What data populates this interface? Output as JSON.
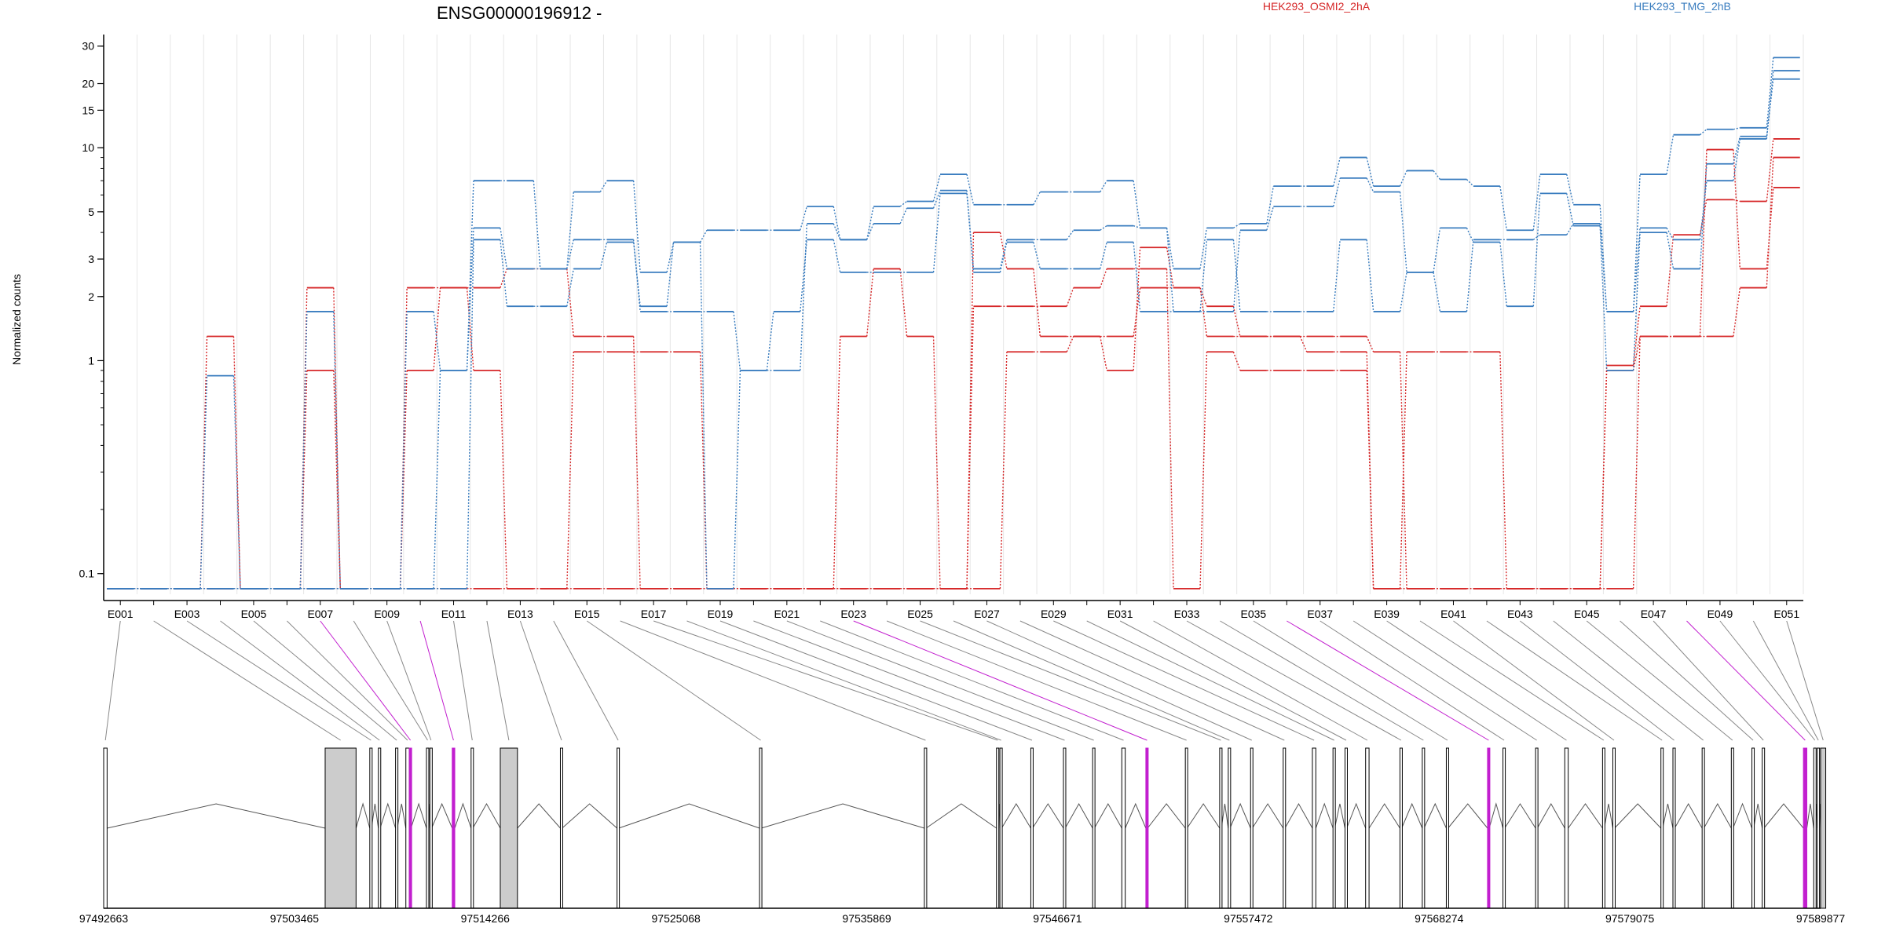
{
  "chart_data": {
    "type": "line",
    "title": "ENSG00000196912 -",
    "ylabel": "Normalized counts",
    "yscale": "log",
    "ylim": [
      0.08,
      34
    ],
    "yticks": [
      0.1,
      1,
      2,
      3,
      5,
      10,
      15,
      20,
      30
    ],
    "ytick_labels": [
      "0.1",
      "1",
      "2",
      "3",
      "5",
      "10",
      "15",
      "20",
      "30"
    ],
    "categories": [
      "E001",
      "E002",
      "E003",
      "E004",
      "E005",
      "E006",
      "E007",
      "E008",
      "E009",
      "E010",
      "E011",
      "E012",
      "E013",
      "E014",
      "E015",
      "E016",
      "E017",
      "E018",
      "E019",
      "E020",
      "E021",
      "E022",
      "E023",
      "E024",
      "E025",
      "E026",
      "E027",
      "E028",
      "E029",
      "E030",
      "E031",
      "E032",
      "E033",
      "E034",
      "E035",
      "E036",
      "E037",
      "E038",
      "E039",
      "E040",
      "E041",
      "E042",
      "E043",
      "E044",
      "E045",
      "E046",
      "E047",
      "E048",
      "E049",
      "E050",
      "E051"
    ],
    "xtick_labels": [
      "E001",
      "E003",
      "E005",
      "E007",
      "E009",
      "E011",
      "E013",
      "E015",
      "E017",
      "E019",
      "E021",
      "E023",
      "E025",
      "E027",
      "E029",
      "E031",
      "E033",
      "E035",
      "E037",
      "E039",
      "E041",
      "E043",
      "E045",
      "E047",
      "E049",
      "E051"
    ],
    "legend": [
      {
        "name": "HEK293_OSMI2_2hA",
        "color": "#d62728"
      },
      {
        "name": "HEK293_TMG_2hB",
        "color": "#3a7dbf"
      }
    ],
    "series": [
      {
        "group": "HEK293_OSMI2_2hA",
        "color": "#d62728",
        "values": [
          0.085,
          0.085,
          0.085,
          1.3,
          0.085,
          0.085,
          2.2,
          0.085,
          0.085,
          0.9,
          2.2,
          2.2,
          2.7,
          2.7,
          1.3,
          1.3,
          0.085,
          0.085,
          0.085,
          0.085,
          0.085,
          0.085,
          0.085,
          0.085,
          0.085,
          0.085,
          4.0,
          2.7,
          1.3,
          1.3,
          0.9,
          3.4,
          2.2,
          1.8,
          1.3,
          1.3,
          1.3,
          1.3,
          1.1,
          0.085,
          0.085,
          0.085,
          0.085,
          0.085,
          0.085,
          0.95,
          1.8,
          3.9,
          5.7,
          5.6,
          11.0
        ]
      },
      {
        "group": "HEK293_OSMI2_2hA",
        "color": "#d62728",
        "values": [
          0.085,
          0.085,
          0.085,
          0.085,
          0.085,
          0.085,
          0.9,
          0.085,
          0.085,
          2.2,
          2.2,
          0.9,
          0.085,
          0.085,
          1.1,
          1.1,
          1.1,
          1.1,
          0.085,
          0.085,
          0.085,
          0.085,
          1.3,
          2.7,
          1.3,
          0.085,
          1.8,
          1.8,
          1.8,
          2.2,
          2.7,
          2.7,
          0.085,
          1.1,
          0.9,
          0.9,
          0.9,
          0.9,
          0.085,
          1.1,
          1.1,
          1.1,
          0.085,
          0.085,
          0.085,
          0.9,
          1.3,
          1.3,
          1.3,
          2.2,
          9.0
        ]
      },
      {
        "group": "HEK293_OSMI2_2hA",
        "color": "#d62728",
        "values": [
          0.085,
          0.085,
          0.085,
          0.085,
          0.085,
          0.085,
          0.085,
          0.085,
          0.085,
          0.085,
          0.085,
          0.085,
          0.085,
          0.085,
          0.085,
          0.085,
          0.085,
          0.085,
          0.085,
          0.085,
          0.085,
          0.085,
          0.085,
          0.085,
          0.085,
          0.085,
          0.085,
          1.1,
          1.1,
          1.3,
          1.3,
          2.2,
          2.2,
          1.3,
          1.3,
          1.3,
          1.1,
          1.1,
          0.085,
          0.085,
          0.085,
          0.085,
          0.085,
          0.085,
          0.085,
          0.085,
          1.3,
          1.3,
          9.8,
          2.7,
          6.5
        ]
      },
      {
        "group": "HEK293_TMG_2hB",
        "color": "#3a7dbf",
        "values": [
          0.085,
          0.085,
          0.085,
          0.085,
          0.085,
          0.085,
          0.085,
          0.085,
          0.085,
          0.085,
          0.9,
          7.0,
          7.0,
          2.7,
          6.2,
          7.0,
          2.6,
          3.6,
          4.1,
          4.1,
          4.1,
          5.3,
          3.7,
          5.3,
          5.6,
          7.5,
          5.4,
          5.4,
          6.2,
          6.2,
          7.0,
          4.2,
          2.7,
          4.2,
          4.4,
          6.6,
          6.6,
          9.0,
          6.6,
          7.8,
          7.1,
          6.6,
          4.1,
          7.5,
          5.4,
          1.7,
          7.5,
          11.5,
          12.2,
          12.4,
          26.5
        ]
      },
      {
        "group": "HEK293_TMG_2hB",
        "color": "#3a7dbf",
        "values": [
          0.085,
          0.085,
          0.085,
          0.85,
          0.085,
          0.085,
          1.7,
          0.085,
          0.085,
          1.7,
          0.9,
          4.2,
          2.7,
          2.7,
          3.7,
          3.7,
          1.7,
          1.7,
          1.7,
          0.9,
          0.9,
          4.4,
          3.7,
          4.4,
          5.2,
          6.3,
          2.7,
          3.7,
          3.7,
          4.1,
          4.3,
          4.2,
          1.7,
          3.7,
          1.7,
          1.7,
          1.7,
          3.7,
          1.7,
          2.6,
          1.7,
          3.7,
          3.7,
          3.9,
          4.4,
          1.7,
          4.2,
          3.7,
          7.0,
          11.0,
          23.0
        ]
      },
      {
        "group": "HEK293_TMG_2hB",
        "color": "#3a7dbf",
        "values": [
          0.085,
          0.085,
          0.085,
          0.085,
          0.085,
          0.085,
          0.085,
          0.085,
          0.085,
          0.085,
          0.085,
          3.7,
          1.8,
          1.8,
          2.7,
          3.6,
          1.8,
          3.6,
          0.085,
          0.9,
          1.7,
          3.7,
          2.6,
          2.6,
          2.6,
          6.1,
          2.6,
          3.6,
          2.7,
          2.7,
          3.6,
          1.7,
          1.7,
          1.7,
          4.1,
          5.3,
          5.3,
          7.2,
          6.2,
          2.6,
          4.2,
          3.6,
          1.8,
          6.1,
          4.3,
          0.9,
          4.0,
          2.7,
          8.4,
          11.3,
          21.0
        ]
      }
    ],
    "genomic_axis": {
      "tick_labels": [
        "97492663",
        "97503465",
        "97514266",
        "97525068",
        "97535869",
        "97546671",
        "97557472",
        "97568274",
        "97579075",
        "97589877"
      ],
      "start": 97492663,
      "end": 97589877
    },
    "exon_highlight_color": "#c21fcf",
    "exon_fill_color": "#cccccc"
  }
}
